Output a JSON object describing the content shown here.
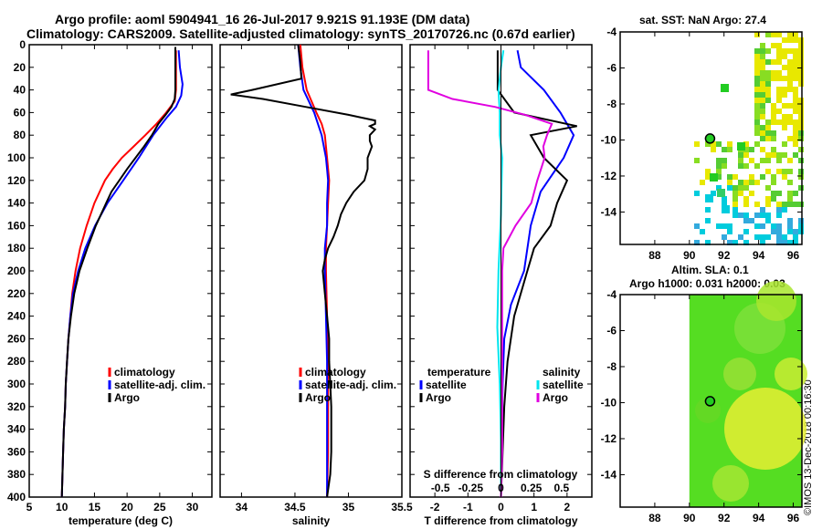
{
  "header": {
    "title_line1": "Argo profile: aoml 5904941_16 26-Jul-2017 9.921S 91.193E (DM data)",
    "title_line2": "Climatology: CARS2009. Satellite-adjusted climatology: synTS_20170726.nc (0.67d earlier)"
  },
  "credit": "©IMOS 13-Dec-2018 00:16:30",
  "colors": {
    "climatology": "#ff0000",
    "satellite": "#0000ff",
    "argo": "#000000",
    "sal_sat": "#00e5ee",
    "sal_argo": "#e000e0",
    "sst_green": "#22cc22",
    "sst_yellow": "#e8e800",
    "sst_cyan": "#00ccdd",
    "sla_green": "#55dd22",
    "sla_yellow": "#e6ee33"
  },
  "chart_data": [
    {
      "type": "line",
      "name": "temperature",
      "xlabel": "temperature (deg C)",
      "ylabel": "",
      "xlim": [
        5,
        33
      ],
      "ylim": [
        400,
        0
      ],
      "xticks": [
        5,
        10,
        15,
        20,
        25,
        30
      ],
      "yticks": [
        0,
        20,
        40,
        60,
        80,
        100,
        120,
        140,
        160,
        180,
        200,
        220,
        240,
        260,
        280,
        300,
        320,
        340,
        360,
        380,
        400
      ],
      "legend": [
        "climatology",
        "satellite-adj. clim.",
        "Argo"
      ],
      "series": [
        {
          "name": "climatology",
          "color": "#ff0000",
          "depth": [
            5,
            20,
            40,
            50,
            60,
            70,
            80,
            90,
            100,
            110,
            120,
            140,
            160,
            180,
            200,
            220,
            240,
            260,
            280,
            300,
            320,
            340,
            360,
            380,
            400
          ],
          "values": [
            27.5,
            27.5,
            27.5,
            27.3,
            26,
            24.5,
            22.8,
            21,
            19.2,
            17.8,
            16.6,
            15,
            13.8,
            12.8,
            12.1,
            11.6,
            11.3,
            11.0,
            10.8,
            10.6,
            10.5,
            10.3,
            10.2,
            10.1,
            10.0
          ]
        },
        {
          "name": "satellite-adj. clim.",
          "color": "#0000ff",
          "depth": [
            5,
            20,
            35,
            45,
            55,
            65,
            80,
            100,
            120,
            140,
            160,
            180,
            200,
            220,
            240,
            260,
            280,
            300,
            320,
            340,
            360,
            380,
            400
          ],
          "values": [
            27.9,
            28.1,
            28.5,
            28.3,
            27.5,
            26,
            24,
            21.8,
            19.4,
            17.0,
            15.1,
            13.6,
            12.5,
            11.7,
            11.3,
            11.0,
            10.8,
            10.6,
            10.5,
            10.3,
            10.2,
            10.1,
            10.0
          ]
        },
        {
          "name": "Argo",
          "color": "#000000",
          "depth": [
            2,
            20,
            40,
            48,
            55,
            62,
            70,
            80,
            90,
            100,
            110,
            120,
            130,
            140,
            160,
            180,
            200,
            220,
            240,
            260,
            280,
            300,
            320,
            340,
            360,
            380,
            400
          ],
          "values": [
            27.4,
            27.4,
            27.4,
            27.3,
            26.8,
            25.9,
            24.8,
            23.8,
            22.6,
            21.3,
            20.0,
            18.8,
            17.6,
            16.8,
            15.2,
            13.9,
            12.7,
            11.9,
            11.4,
            11.0,
            10.8,
            10.6,
            10.5,
            10.3,
            10.2,
            10.1,
            10.0
          ]
        }
      ]
    },
    {
      "type": "line",
      "name": "salinity",
      "xlabel": "salinity",
      "ylabel": "",
      "xlim": [
        33.8,
        35.5
      ],
      "ylim": [
        400,
        0
      ],
      "xticks": [
        34,
        34.5,
        35,
        35.5
      ],
      "legend": [
        "climatology",
        "satellite-adj. clim.",
        "Argo"
      ],
      "series": [
        {
          "name": "climatology",
          "color": "#ff0000",
          "depth": [
            0,
            20,
            40,
            60,
            70,
            80,
            100,
            120,
            140,
            160,
            180,
            200,
            240,
            280,
            320,
            360,
            400
          ],
          "values": [
            34.55,
            34.57,
            34.61,
            34.7,
            34.75,
            34.78,
            34.8,
            34.82,
            34.81,
            34.8,
            34.79,
            34.79,
            34.8,
            34.81,
            34.81,
            34.81,
            34.8
          ]
        },
        {
          "name": "satellite-adj. clim.",
          "color": "#0000ff",
          "depth": [
            0,
            20,
            40,
            60,
            80,
            100,
            110,
            120,
            140,
            160,
            180,
            200,
            240,
            280,
            320,
            360,
            400
          ],
          "values": [
            34.53,
            34.55,
            34.58,
            34.68,
            34.75,
            34.79,
            34.8,
            34.81,
            34.8,
            34.8,
            34.78,
            34.78,
            34.79,
            34.8,
            34.8,
            34.8,
            34.8
          ]
        },
        {
          "name": "Argo",
          "color": "#000000",
          "depth": [
            0,
            15,
            30,
            40,
            44,
            48,
            55,
            62,
            67,
            70,
            72,
            75,
            80,
            85,
            90,
            100,
            110,
            120,
            130,
            140,
            150,
            160,
            170,
            180,
            190,
            200,
            220,
            240,
            260,
            280,
            300,
            320,
            340,
            360,
            380,
            400
          ],
          "values": [
            34.53,
            34.55,
            34.56,
            34.1,
            33.9,
            34.2,
            34.6,
            35.0,
            35.25,
            35.25,
            35.2,
            35.25,
            35.2,
            35.2,
            35.22,
            35.18,
            35.18,
            35.15,
            35.05,
            34.98,
            34.93,
            34.9,
            34.86,
            34.81,
            34.78,
            34.76,
            34.78,
            34.8,
            34.82,
            34.82,
            34.83,
            34.84,
            34.84,
            34.84,
            34.83,
            34.8
          ]
        }
      ]
    },
    {
      "type": "line",
      "name": "difference",
      "xlabel": "T difference from climatology",
      "x2label": "S difference from climatology",
      "xlim": [
        -2.75,
        2.75
      ],
      "ylim": [
        400,
        0
      ],
      "xticks": [
        "-2",
        "-1",
        "0",
        "1",
        "2"
      ],
      "xtick_vals": [
        -2,
        -1,
        0,
        1,
        2
      ],
      "x2ticks": [
        "-0.5",
        "-0.25",
        "0",
        "0.25",
        "0.5"
      ],
      "legend_temperature_title": "temperature",
      "legend_salinity_title": "salinity",
      "legend_temp": [
        "satellite",
        "Argo"
      ],
      "legend_sal": [
        "satellite",
        "Argo"
      ],
      "series": [
        {
          "name": "T satellite",
          "color": "#0000ff",
          "depth": [
            5,
            20,
            40,
            60,
            80,
            100,
            130,
            160,
            200,
            230,
            260,
            300,
            350,
            400
          ],
          "values": [
            0.5,
            0.6,
            1.3,
            1.8,
            2.2,
            1.9,
            1.2,
            0.9,
            0.7,
            0.3,
            0.1,
            0.05,
            0.02,
            0.0
          ]
        },
        {
          "name": "T Argo",
          "color": "#000000",
          "depth": [
            5,
            20,
            40,
            60,
            72,
            80,
            100,
            120,
            140,
            160,
            180,
            200,
            240,
            280,
            320,
            360,
            400
          ],
          "values": [
            -0.1,
            -0.1,
            -0.1,
            0.4,
            2.3,
            0.9,
            1.3,
            2.0,
            1.7,
            1.5,
            1.0,
            0.8,
            0.4,
            0.2,
            0.1,
            0.05,
            0.0
          ]
        },
        {
          "name": "S satellite",
          "color": "#00e5ee",
          "depth": [
            5,
            20,
            40,
            60,
            80,
            100,
            150,
            200,
            250,
            300,
            350,
            400
          ],
          "values": [
            0.02,
            0.0,
            -0.02,
            -0.01,
            -0.01,
            0.01,
            0.0,
            -0.02,
            -0.03,
            -0.01,
            0.0,
            0.0
          ]
        },
        {
          "name": "S Argo",
          "color": "#e000e0",
          "depth": [
            5,
            20,
            40,
            48,
            55,
            62,
            70,
            80,
            90,
            100,
            120,
            140,
            160,
            180,
            200,
            240,
            280,
            320,
            360,
            400
          ],
          "values": [
            -0.6,
            -0.6,
            -0.6,
            -0.4,
            -0.05,
            0.2,
            0.42,
            0.38,
            0.35,
            0.36,
            0.3,
            0.25,
            0.12,
            0.02,
            0.01,
            0.01,
            0.01,
            0.01,
            0.01,
            0.0
          ]
        }
      ]
    },
    {
      "type": "heatmap",
      "name": "sst_map",
      "title": "sat. SST: NaN Argo: 27.4",
      "xlim": [
        86,
        96.5
      ],
      "ylim": [
        -15.8,
        -4
      ],
      "xticks": [
        88,
        90,
        92,
        94,
        96
      ],
      "yticks": [
        -4,
        -6,
        -8,
        -10,
        -12,
        -14
      ],
      "argo_location": {
        "lon": 91.193,
        "lat": -9.921
      }
    },
    {
      "type": "heatmap",
      "name": "sla_map",
      "title_line1": "Altim. SLA: 0.1",
      "title_line2": "Argo h1000: 0.031 h2000: 0.03",
      "xlim": [
        86,
        96.5
      ],
      "ylim": [
        -15.8,
        -4
      ],
      "xticks": [
        88,
        90,
        92,
        94,
        96
      ],
      "yticks": [
        -4,
        -6,
        -8,
        -10,
        -12,
        -14
      ],
      "argo_location": {
        "lon": 91.193,
        "lat": -9.921
      }
    }
  ]
}
